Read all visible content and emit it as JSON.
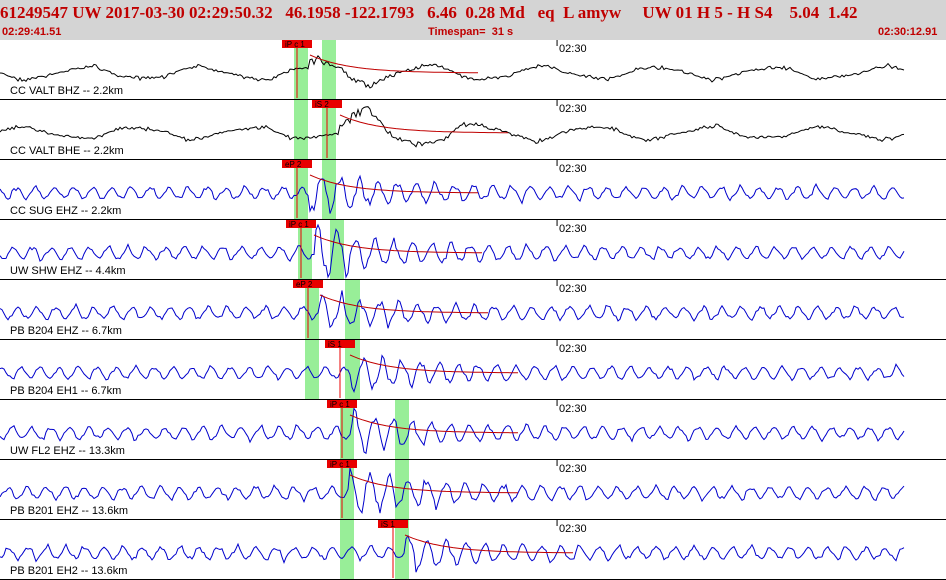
{
  "header": {
    "event_id": "61249547",
    "network": "UW",
    "origin_datetime": "2017-03-30 02:29:50.32",
    "latitude": "46.1958",
    "longitude": "-122.1793",
    "depth": "6.46",
    "magnitude": "0.28",
    "mag_type": "Md",
    "event_type": "eq",
    "l_flag": "L",
    "analyst": "amyw",
    "status": "UW 01 H 5 - H S4",
    "err1": "5.04",
    "err2": "1.42",
    "start_time": "02:29:41.51",
    "timespan_label": "Timespan=",
    "timespan_value": "31 s",
    "end_time": "02:30:12.91"
  },
  "colors": {
    "header_bg": "#d4d4d4",
    "header_text": "#c00000",
    "pick_highlight": "#98ee98",
    "pick_box": "#e80000",
    "trace_black": "#000000",
    "trace_blue": "#0000cc",
    "decay_curve": "#c00000"
  },
  "time_tick_label": "02:30",
  "traces": [
    {
      "label": "CC VALT BHZ -- 2.2km",
      "color": "black",
      "amp": 0.45,
      "picks": [
        {
          "label": "iP c 1",
          "t": 0.0
        }
      ]
    },
    {
      "label": "CC VALT BHE -- 2.2km",
      "color": "black",
      "amp": 0.85,
      "picks": [
        {
          "label": "iS 2",
          "t": 0.44
        }
      ]
    },
    {
      "label": "CC SUG EHZ -- 2.2km",
      "color": "blue",
      "amp": 0.7,
      "picks": [
        {
          "label": "eP 2",
          "t": 0.0
        }
      ]
    },
    {
      "label": "UW SHW EHZ -- 4.4km",
      "color": "blue",
      "amp": 0.9,
      "picks": [
        {
          "label": "iP c 1",
          "t": 0.05
        }
      ]
    },
    {
      "label": "PB B204 EHZ -- 6.7km",
      "color": "blue",
      "amp": 0.5,
      "picks": [
        {
          "label": "eP 2",
          "t": 0.1
        }
      ]
    },
    {
      "label": "PB B204 EH1 -- 6.7km",
      "color": "blue",
      "amp": 0.5,
      "picks": [
        {
          "label": "iS 1",
          "t": 1.3
        }
      ]
    },
    {
      "label": "UW FL2 EHZ -- 13.3km",
      "color": "blue",
      "amp": 0.6,
      "picks": [
        {
          "label": "iP c 1",
          "t": 0.9
        }
      ]
    },
    {
      "label": "PB B201 EHZ -- 13.6km",
      "color": "blue",
      "amp": 0.7,
      "picks": [
        {
          "label": "iP c 1",
          "t": 0.9
        }
      ]
    },
    {
      "label": "PB B201 EH2 -- 13.6km",
      "color": "blue",
      "amp": 0.5,
      "picks": [
        {
          "label": "iS 1",
          "t": 2.0
        }
      ]
    }
  ]
}
